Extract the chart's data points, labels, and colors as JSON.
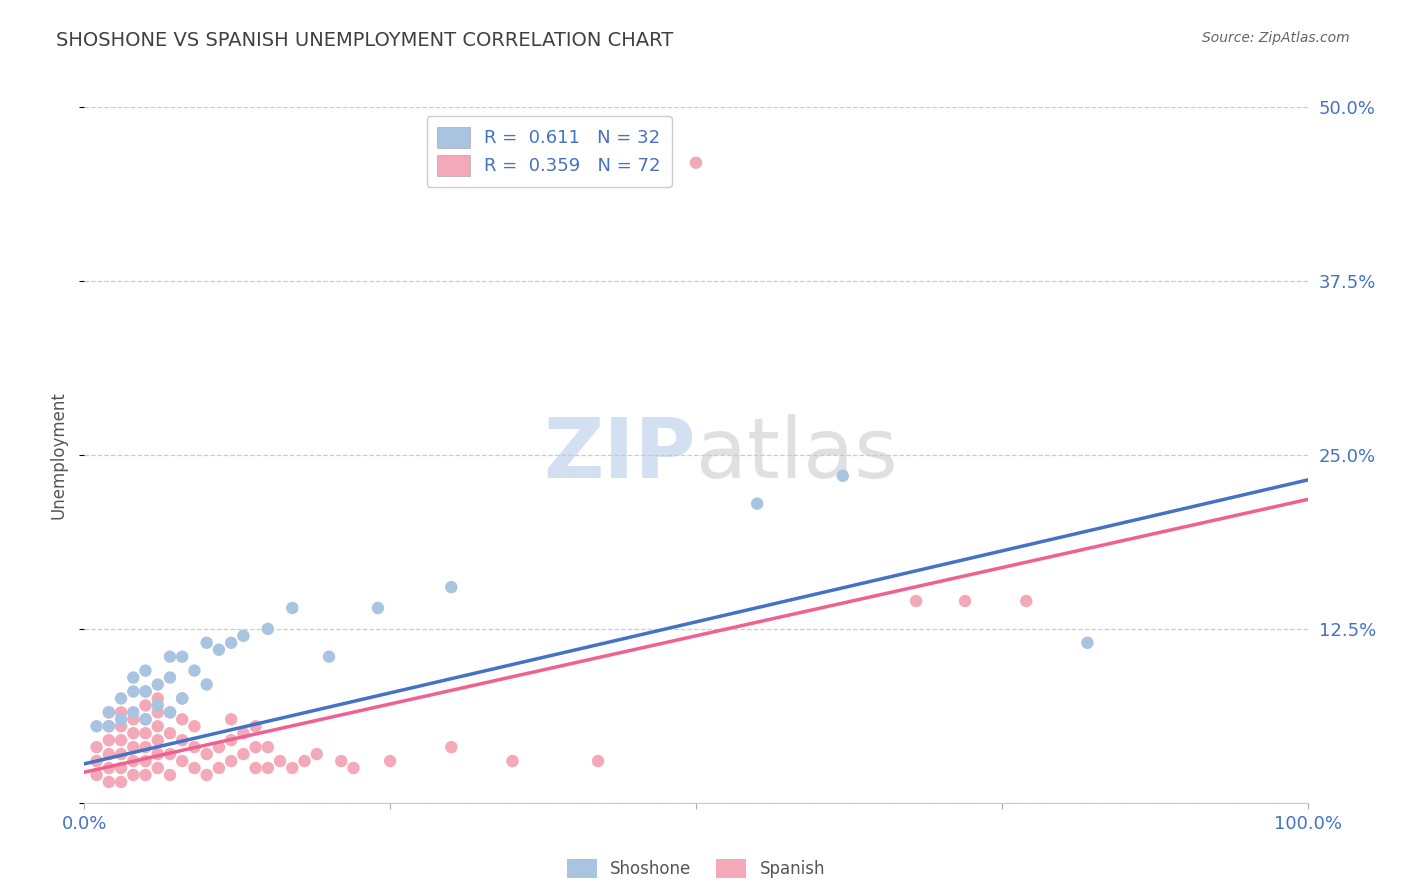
{
  "title": "SHOSHONE VS SPANISH UNEMPLOYMENT CORRELATION CHART",
  "source": "Source: ZipAtlas.com",
  "ylabel": "Unemployment",
  "xlim": [
    0.0,
    1.0
  ],
  "ylim": [
    0.0,
    0.5
  ],
  "yticks": [
    0.0,
    0.125,
    0.25,
    0.375,
    0.5
  ],
  "ytick_labels": [
    "",
    "12.5%",
    "25.0%",
    "37.5%",
    "50.0%"
  ],
  "shoshone_color": "#a8c4e0",
  "spanish_color": "#f4a9b8",
  "shoshone_line_color": "#4472c4",
  "spanish_line_color": "#f06090",
  "R_shoshone": 0.611,
  "N_shoshone": 32,
  "R_spanish": 0.359,
  "N_spanish": 72,
  "legend_labels": [
    "Shoshone",
    "Spanish"
  ],
  "shoshone_line_x0": 0.0,
  "shoshone_line_y0": 0.028,
  "shoshone_line_x1": 1.0,
  "shoshone_line_y1": 0.232,
  "spanish_line_x0": 0.0,
  "spanish_line_y0": 0.022,
  "spanish_line_x1": 1.0,
  "spanish_line_y1": 0.218,
  "shoshone_x": [
    0.01,
    0.02,
    0.02,
    0.03,
    0.03,
    0.04,
    0.04,
    0.04,
    0.05,
    0.05,
    0.05,
    0.06,
    0.06,
    0.07,
    0.07,
    0.07,
    0.08,
    0.08,
    0.09,
    0.1,
    0.1,
    0.11,
    0.12,
    0.13,
    0.15,
    0.17,
    0.2,
    0.24,
    0.3,
    0.55,
    0.62,
    0.82
  ],
  "shoshone_y": [
    0.055,
    0.055,
    0.065,
    0.06,
    0.075,
    0.065,
    0.08,
    0.09,
    0.06,
    0.08,
    0.095,
    0.07,
    0.085,
    0.065,
    0.09,
    0.105,
    0.075,
    0.105,
    0.095,
    0.085,
    0.115,
    0.11,
    0.115,
    0.12,
    0.125,
    0.14,
    0.105,
    0.14,
    0.155,
    0.215,
    0.235,
    0.115
  ],
  "spanish_x": [
    0.01,
    0.01,
    0.01,
    0.02,
    0.02,
    0.02,
    0.02,
    0.02,
    0.02,
    0.03,
    0.03,
    0.03,
    0.03,
    0.03,
    0.03,
    0.04,
    0.04,
    0.04,
    0.04,
    0.04,
    0.05,
    0.05,
    0.05,
    0.05,
    0.05,
    0.05,
    0.05,
    0.06,
    0.06,
    0.06,
    0.06,
    0.06,
    0.06,
    0.07,
    0.07,
    0.07,
    0.07,
    0.08,
    0.08,
    0.08,
    0.08,
    0.09,
    0.09,
    0.09,
    0.1,
    0.1,
    0.11,
    0.11,
    0.12,
    0.12,
    0.12,
    0.13,
    0.13,
    0.14,
    0.14,
    0.14,
    0.15,
    0.15,
    0.16,
    0.17,
    0.18,
    0.19,
    0.21,
    0.22,
    0.25,
    0.3,
    0.35,
    0.42,
    0.5,
    0.68,
    0.72,
    0.77
  ],
  "spanish_y": [
    0.02,
    0.03,
    0.04,
    0.015,
    0.025,
    0.035,
    0.045,
    0.055,
    0.065,
    0.015,
    0.025,
    0.035,
    0.045,
    0.055,
    0.065,
    0.02,
    0.03,
    0.04,
    0.05,
    0.06,
    0.02,
    0.03,
    0.04,
    0.05,
    0.06,
    0.07,
    0.08,
    0.025,
    0.035,
    0.045,
    0.055,
    0.065,
    0.075,
    0.02,
    0.035,
    0.05,
    0.065,
    0.03,
    0.045,
    0.06,
    0.075,
    0.025,
    0.04,
    0.055,
    0.02,
    0.035,
    0.025,
    0.04,
    0.03,
    0.045,
    0.06,
    0.035,
    0.05,
    0.025,
    0.04,
    0.055,
    0.025,
    0.04,
    0.03,
    0.025,
    0.03,
    0.035,
    0.03,
    0.025,
    0.03,
    0.04,
    0.03,
    0.03,
    0.46,
    0.145,
    0.145,
    0.145
  ],
  "background_color": "#ffffff",
  "grid_color": "#cccccc",
  "title_color": "#404040",
  "axis_color": "#4472c4",
  "source_color": "#666666"
}
